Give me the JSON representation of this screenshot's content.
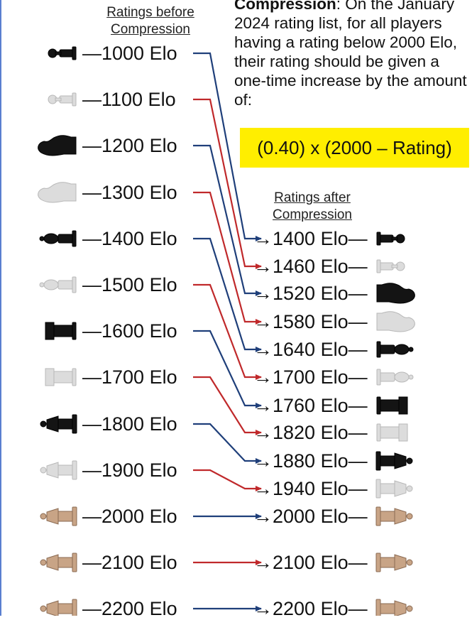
{
  "headers": {
    "before_line1": "Ratings before",
    "before_line2": "Compression",
    "after_line1": "Ratings after",
    "after_line2": "Compression"
  },
  "description": {
    "term": "Compression",
    "text": ": On the January 2024 rating list, for all players having a rating below 2000 Elo, their rating should be given a one-time increase by the amount of:"
  },
  "formula": "(0.40) x (2000 – Rating)",
  "colors": {
    "arrow_blue": "#1f3f7a",
    "arrow_red": "#c0292b",
    "highlight": "#ffee00"
  },
  "mappings": [
    {
      "before": "—1000 Elo",
      "after": "→1400 Elo—",
      "before_value": 1000,
      "after_value": 1400,
      "piece": "pawn",
      "piece_color": "black",
      "arrow": "blue"
    },
    {
      "before": "—1100 Elo",
      "after": "→1460 Elo—",
      "before_value": 1100,
      "after_value": 1460,
      "piece": "pawn",
      "piece_color": "white",
      "arrow": "red"
    },
    {
      "before": "—1200 Elo",
      "after": "→1520 Elo—",
      "before_value": 1200,
      "after_value": 1520,
      "piece": "knight",
      "piece_color": "black",
      "arrow": "blue"
    },
    {
      "before": "—1300 Elo",
      "after": "→1580 Elo—",
      "before_value": 1300,
      "after_value": 1580,
      "piece": "knight",
      "piece_color": "white",
      "arrow": "red"
    },
    {
      "before": "—1400 Elo",
      "after": "→1640 Elo—",
      "before_value": 1400,
      "after_value": 1640,
      "piece": "bishop",
      "piece_color": "black",
      "arrow": "blue"
    },
    {
      "before": "—1500 Elo",
      "after": "→1700 Elo—",
      "before_value": 1500,
      "after_value": 1700,
      "piece": "bishop",
      "piece_color": "white",
      "arrow": "red"
    },
    {
      "before": "—1600 Elo",
      "after": "→1760 Elo—",
      "before_value": 1600,
      "after_value": 1760,
      "piece": "rook",
      "piece_color": "black",
      "arrow": "blue"
    },
    {
      "before": "—1700 Elo",
      "after": "→1820 Elo—",
      "before_value": 1700,
      "after_value": 1820,
      "piece": "rook",
      "piece_color": "white",
      "arrow": "red"
    },
    {
      "before": "—1800 Elo",
      "after": "→1880 Elo—",
      "before_value": 1800,
      "after_value": 1880,
      "piece": "queen",
      "piece_color": "black",
      "arrow": "blue"
    },
    {
      "before": "—1900 Elo",
      "after": "→1940 Elo—",
      "before_value": 1900,
      "after_value": 1940,
      "piece": "queen",
      "piece_color": "white",
      "arrow": "red"
    },
    {
      "before": "—2000 Elo",
      "after": "→2000 Elo—",
      "before_value": 2000,
      "after_value": 2000,
      "piece": "queen",
      "piece_color": "wood",
      "arrow": "blue"
    },
    {
      "before": "—2100 Elo",
      "after": "→2100 Elo—",
      "before_value": 2100,
      "after_value": 2100,
      "piece": "queen",
      "piece_color": "wood",
      "arrow": "red"
    },
    {
      "before": "—2200 Elo",
      "after": "→2200 Elo—",
      "before_value": 2200,
      "after_value": 2200,
      "piece": "queen",
      "piece_color": "wood",
      "arrow": "blue"
    }
  ]
}
